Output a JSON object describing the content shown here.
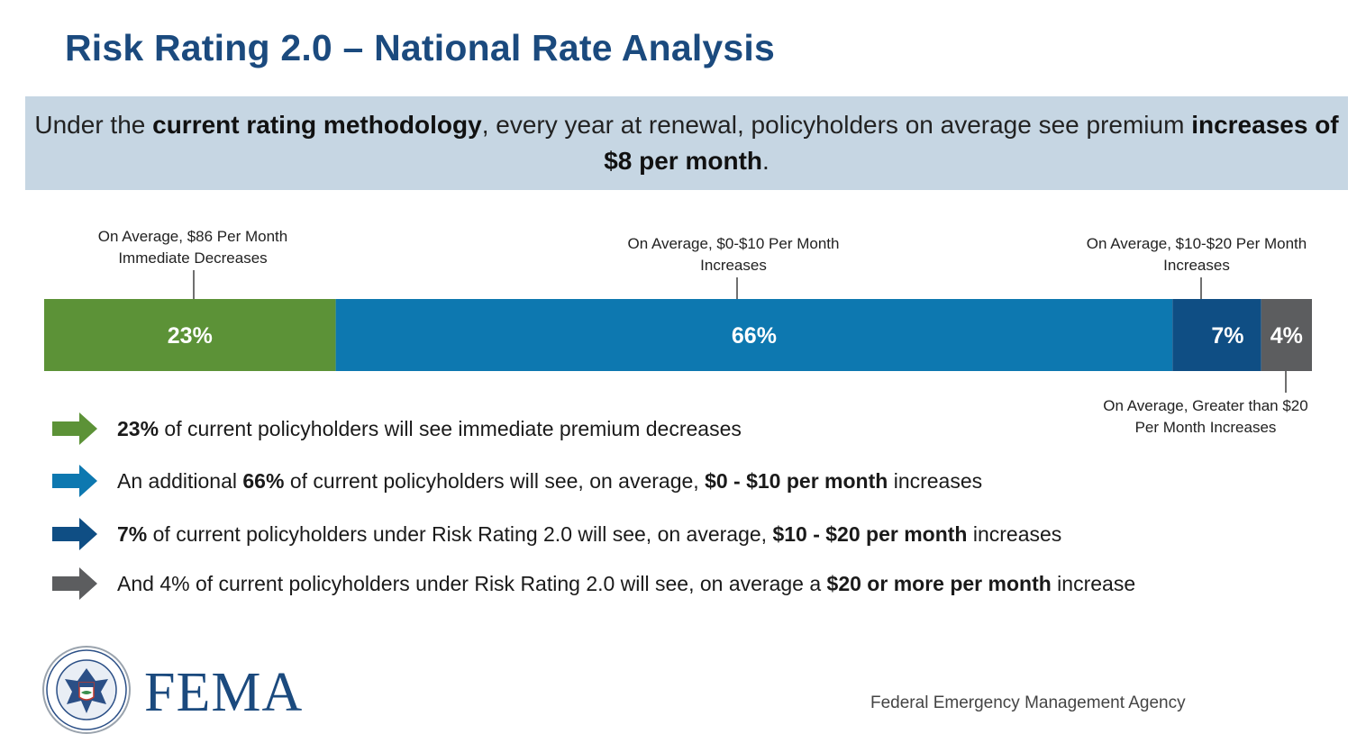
{
  "title": "Risk Rating 2.0 – National Rate Analysis",
  "banner": {
    "part1": "Under the ",
    "bold1": "current rating methodology",
    "part2": ", every year at renewal, policyholders on average see premium ",
    "bold2": "increases of $8 per month",
    "part3": "."
  },
  "chart_data": {
    "type": "bar",
    "orientation": "horizontal-stacked",
    "unit": "%",
    "segments": [
      {
        "value": 23,
        "label_text": "23%",
        "color": "#5c9237",
        "callout": [
          "On Average, $86 Per Month",
          "Immediate Decreases"
        ],
        "callout_side": "top"
      },
      {
        "value": 66,
        "label_text": "66%",
        "color": "#0d78b0",
        "callout": [
          "On Average, $0-$10 Per Month",
          "Increases"
        ],
        "callout_side": "top"
      },
      {
        "value": 7,
        "label_text": "7%",
        "color": "#0f4e84",
        "callout": [
          "On Average, $10-$20 Per Month",
          "Increases"
        ],
        "callout_side": "top"
      },
      {
        "value": 4,
        "label_text": "4%",
        "color": "#5c5d5f",
        "callout": [
          "On Average, Greater than $20",
          "Per Month Increases"
        ],
        "callout_side": "bottom"
      }
    ]
  },
  "bullets": [
    {
      "arrow_color": "#5c9237",
      "parts": [
        {
          "t": "23%",
          "b": true
        },
        {
          "t": " of current policyholders will see immediate premium decreases",
          "b": false
        }
      ]
    },
    {
      "arrow_color": "#0d78b0",
      "parts": [
        {
          "t": "An additional ",
          "b": false
        },
        {
          "t": "66%",
          "b": true
        },
        {
          "t": " of current policyholders will see, on average, ",
          "b": false
        },
        {
          "t": "$0 - $10 per month",
          "b": true
        },
        {
          "t": " increases",
          "b": false
        }
      ]
    },
    {
      "arrow_color": "#0f4e84",
      "parts": [
        {
          "t": "7%",
          "b": true
        },
        {
          "t": " of current policyholders under Risk Rating 2.0 will see, on average, ",
          "b": false
        },
        {
          "t": "$10 - $20 per month",
          "b": true
        },
        {
          "t": " increases",
          "b": false
        }
      ]
    },
    {
      "arrow_color": "#5c5d5f",
      "parts": [
        {
          "t": "And 4% of current policyholders under Risk Rating 2.0 will see, on average a ",
          "b": false
        },
        {
          "t": "$20 or more per month",
          "b": true
        },
        {
          "t": " increase",
          "b": false
        }
      ]
    }
  ],
  "footer": {
    "logo_icon": "dhs-seal-icon",
    "logo_text": "FEMA",
    "agency": "Federal Emergency Management Agency"
  }
}
